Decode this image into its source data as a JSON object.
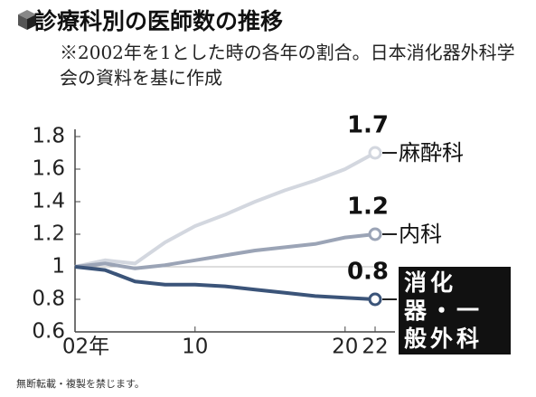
{
  "chart_data": {
    "type": "line",
    "title": "診療科別の医師数の推移",
    "subtitle": "※2002年を1とした時の各年の割合。日本消化器外科学会の資料を基に作成",
    "footer": "無断転載・複製を禁じます。",
    "x": [
      2002,
      2004,
      2006,
      2008,
      2010,
      2012,
      2014,
      2016,
      2018,
      2020,
      2022
    ],
    "series": [
      {
        "name": "麻酔科",
        "color": "#d3d7df",
        "values": [
          1,
          1.04,
          1.02,
          1.15,
          1.25,
          1.32,
          1.4,
          1.47,
          1.53,
          1.6,
          1.7
        ]
      },
      {
        "name": "内科",
        "color": "#9ba4b6",
        "values": [
          1,
          1.02,
          0.99,
          1.01,
          1.04,
          1.07,
          1.1,
          1.12,
          1.14,
          1.18,
          1.2
        ]
      },
      {
        "name": "消化器・一般外科",
        "color": "#3b5479",
        "values": [
          1,
          0.98,
          0.91,
          0.89,
          0.89,
          0.88,
          0.86,
          0.84,
          0.82,
          0.81,
          0.8
        ]
      }
    ],
    "xlim": [
      2002,
      2022
    ],
    "xticks": [
      {
        "value": 2002,
        "label": "02年"
      },
      {
        "value": 2010,
        "label": "10"
      },
      {
        "value": 2020,
        "label": "20"
      },
      {
        "value": 2022,
        "label": "22"
      }
    ],
    "ylim": [
      0.6,
      1.8
    ],
    "yticks": [
      0.6,
      0.8,
      1,
      1.2,
      1.4,
      1.6,
      1.8
    ],
    "hline": 1,
    "grid": false
  }
}
